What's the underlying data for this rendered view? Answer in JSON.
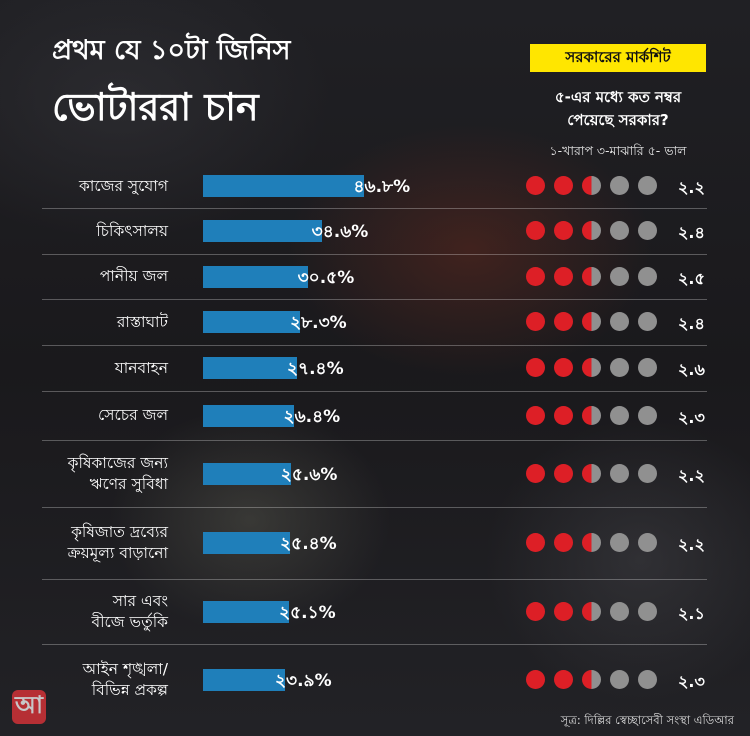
{
  "header": {
    "title_line1": "প্রথম যে ১০টা জিনিস",
    "title_line2": "ভোটাররা চান",
    "badge": "সরকারের মার্কশিট",
    "question_line1": "৫-এর মধ্যে কত নম্বর",
    "question_line2": "পেয়েছে সরকার?",
    "scale": "১-খারাপ ৩-মাঝারি ৫- ভাল"
  },
  "colors": {
    "bar": "#1f7fba",
    "dot_filled": "#dd1f26",
    "dot_empty": "#909090",
    "badge": "#ffe600"
  },
  "chart_data": {
    "type": "bar",
    "categories": [
      "কাজের সুযোগ",
      "চিকিৎসালয়",
      "পানীয় জল",
      "রাস্তাঘাট",
      "যানবাহন",
      "সেচের জল",
      "কৃষিকাজের জন্য ঋণের সুবিধা",
      "কৃষিজাত দ্রব্যের ক্রয়মূল্য বাড়ানো",
      "সার এবং বীজে ভর্তুকি",
      "আইন শৃঙ্খলা/ বিভিন্ন প্রকল্প"
    ],
    "label_lines": [
      [
        "কাজের সুযোগ"
      ],
      [
        "চিকিৎসালয়"
      ],
      [
        "পানীয় জল"
      ],
      [
        "রাস্তাঘাট"
      ],
      [
        "যানবাহন"
      ],
      [
        "সেচের জল"
      ],
      [
        "কৃষিকাজের জন্য",
        "ঋণের সুবিধা"
      ],
      [
        "কৃষিজাত দ্রব্যের",
        "ক্রয়মূল্য বাড়ানো"
      ],
      [
        "সার এবং",
        "বীজে ভর্তুকি"
      ],
      [
        "আইন শৃঙ্খলা/",
        "বিভিন্ন প্রকল্প"
      ]
    ],
    "values": [
      46.8,
      34.6,
      30.5,
      28.3,
      27.4,
      26.4,
      25.6,
      25.4,
      25.1,
      23.9
    ],
    "value_labels": [
      "৪৬.৮%",
      "৩৪.৬%",
      "৩০.৫%",
      "২৮.৩%",
      "২৭.৪%",
      "২৬.৪%",
      "২৫.৬%",
      "২৫.৪%",
      "২৫.১%",
      "২৩.৯%"
    ],
    "scores": [
      2.2,
      2.4,
      2.5,
      2.4,
      2.6,
      2.3,
      2.2,
      2.2,
      2.1,
      2.3
    ],
    "score_labels": [
      "২.২",
      "২.৪",
      "২.৫",
      "২.৪",
      "২.৬",
      "২.৩",
      "২.২",
      "২.২",
      "২.১",
      "২.৩"
    ],
    "score_max": 5,
    "dot_fill": [
      2.5,
      2.5,
      2.5,
      2.5,
      2.5,
      2.5,
      2.5,
      2.5,
      2.5,
      2.5
    ]
  },
  "footer": {
    "logo_text": "আ",
    "source": "সূত্র: দিল্লির স্বেচ্ছাসেবী সংস্থা এডিআর"
  }
}
